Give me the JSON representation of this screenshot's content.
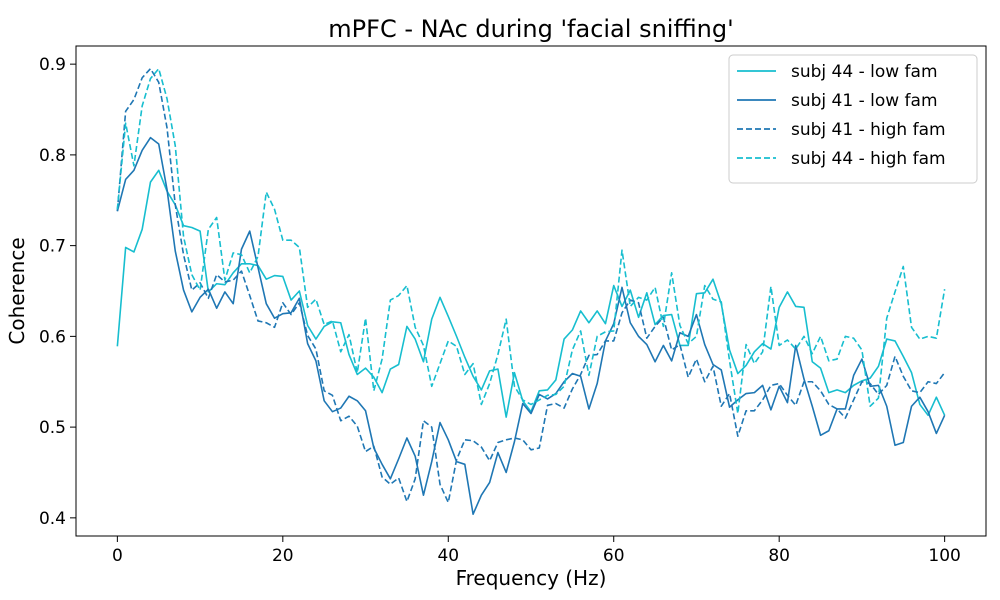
{
  "chart_data": {
    "type": "line",
    "title": "mPFC - NAc during 'facial sniffing'",
    "xlabel": "Frequency (Hz)",
    "ylabel": "Coherence",
    "xlim": [
      -5,
      105
    ],
    "ylim": [
      0.38,
      0.92
    ],
    "xticks": [
      0,
      20,
      40,
      60,
      80,
      100
    ],
    "yticks": [
      0.4,
      0.5,
      0.6,
      0.7,
      0.8,
      0.9
    ],
    "ytick_labels": [
      "0.4",
      "0.5",
      "0.6",
      "0.7",
      "0.8",
      "0.9"
    ],
    "legend_position": "top-right",
    "x": [
      0,
      1,
      2,
      3,
      4,
      5,
      6,
      7,
      8,
      9,
      10,
      11,
      12,
      13,
      14,
      15,
      16,
      17,
      18,
      19,
      20,
      21,
      22,
      23,
      24,
      25,
      26,
      27,
      28,
      29,
      30,
      31,
      32,
      33,
      34,
      35,
      36,
      37,
      38,
      39,
      40,
      41,
      42,
      43,
      44,
      45,
      46,
      47,
      48,
      49,
      50,
      51,
      52,
      53,
      54,
      55,
      56,
      57,
      58,
      59,
      60,
      61,
      62,
      63,
      64,
      65,
      66,
      67,
      68,
      69,
      70,
      71,
      72,
      73,
      74,
      75,
      76,
      77,
      78,
      79,
      80,
      81,
      82,
      83,
      84,
      85,
      86,
      87,
      88,
      89,
      90,
      91,
      92,
      93,
      94,
      95,
      96,
      97,
      98,
      99,
      100
    ],
    "series": [
      {
        "name": "subj 44 - low fam",
        "color": "#17becf",
        "dash": "solid",
        "values": [
          0.589,
          0.698,
          0.693,
          0.718,
          0.77,
          0.783,
          0.76,
          0.745,
          0.722,
          0.72,
          0.716,
          0.649,
          0.658,
          0.657,
          0.67,
          0.68,
          0.68,
          0.678,
          0.663,
          0.667,
          0.666,
          0.64,
          0.65,
          0.612,
          0.597,
          0.611,
          0.616,
          0.615,
          0.58,
          0.558,
          0.565,
          0.555,
          0.538,
          0.564,
          0.569,
          0.611,
          0.597,
          0.572,
          0.619,
          0.643,
          0.622,
          0.6,
          0.577,
          0.556,
          0.541,
          0.562,
          0.564,
          0.511,
          0.56,
          0.529,
          0.517,
          0.54,
          0.541,
          0.552,
          0.597,
          0.607,
          0.628,
          0.615,
          0.628,
          0.614,
          0.656,
          0.633,
          0.651,
          0.621,
          0.648,
          0.613,
          0.623,
          0.624,
          0.59,
          0.59,
          0.647,
          0.648,
          0.663,
          0.636,
          0.585,
          0.559,
          0.568,
          0.583,
          0.592,
          0.586,
          0.632,
          0.649,
          0.633,
          0.632,
          0.572,
          0.565,
          0.538,
          0.541,
          0.538,
          0.546,
          0.551,
          0.554,
          0.567,
          0.597,
          0.595,
          0.578,
          0.56,
          0.525,
          0.513,
          0.533,
          0.513
        ]
      },
      {
        "name": "subj 41 - low fam",
        "color": "#1f77b4",
        "dash": "solid",
        "values": [
          0.738,
          0.773,
          0.783,
          0.805,
          0.819,
          0.812,
          0.762,
          0.694,
          0.651,
          0.627,
          0.643,
          0.652,
          0.631,
          0.649,
          0.636,
          0.696,
          0.716,
          0.676,
          0.636,
          0.62,
          0.625,
          0.626,
          0.642,
          0.592,
          0.573,
          0.529,
          0.517,
          0.521,
          0.534,
          0.529,
          0.518,
          0.477,
          0.459,
          0.443,
          0.465,
          0.488,
          0.468,
          0.425,
          0.462,
          0.505,
          0.486,
          0.462,
          0.459,
          0.404,
          0.425,
          0.439,
          0.472,
          0.45,
          0.484,
          0.526,
          0.515,
          0.536,
          0.531,
          0.537,
          0.55,
          0.559,
          0.556,
          0.52,
          0.548,
          0.595,
          0.614,
          0.654,
          0.615,
          0.6,
          0.591,
          0.572,
          0.59,
          0.573,
          0.604,
          0.6,
          0.624,
          0.591,
          0.569,
          0.563,
          0.522,
          0.53,
          0.537,
          0.538,
          0.546,
          0.519,
          0.545,
          0.527,
          0.59,
          0.553,
          0.523,
          0.491,
          0.496,
          0.52,
          0.52,
          0.557,
          0.575,
          0.545,
          0.546,
          0.523,
          0.48,
          0.483,
          0.523,
          0.533,
          0.517,
          0.493,
          0.513
        ]
      },
      {
        "name": "subj 41 - high fam",
        "color": "#1f77b4",
        "dash": "dashed",
        "values": [
          0.738,
          0.848,
          0.861,
          0.885,
          0.895,
          0.88,
          0.83,
          0.745,
          0.69,
          0.651,
          0.659,
          0.642,
          0.668,
          0.66,
          0.662,
          0.672,
          0.645,
          0.617,
          0.615,
          0.61,
          0.637,
          0.624,
          0.637,
          0.601,
          0.586,
          0.54,
          0.535,
          0.507,
          0.512,
          0.501,
          0.473,
          0.479,
          0.445,
          0.437,
          0.444,
          0.418,
          0.443,
          0.507,
          0.5,
          0.437,
          0.417,
          0.464,
          0.486,
          0.485,
          0.478,
          0.463,
          0.483,
          0.486,
          0.488,
          0.486,
          0.475,
          0.477,
          0.524,
          0.526,
          0.521,
          0.542,
          0.558,
          0.579,
          0.58,
          0.595,
          0.595,
          0.626,
          0.64,
          0.637,
          0.598,
          0.611,
          0.621,
          0.585,
          0.591,
          0.555,
          0.575,
          0.55,
          0.567,
          0.523,
          0.537,
          0.49,
          0.518,
          0.518,
          0.53,
          0.546,
          0.548,
          0.535,
          0.524,
          0.55,
          0.55,
          0.54,
          0.525,
          0.52,
          0.51,
          0.53,
          0.55,
          0.548,
          0.536,
          0.546,
          0.578,
          0.556,
          0.54,
          0.538,
          0.55,
          0.548,
          0.56
        ]
      },
      {
        "name": "subj 44 - high fam",
        "color": "#17becf",
        "dash": "dashed",
        "values": [
          0.74,
          0.835,
          0.788,
          0.854,
          0.884,
          0.895,
          0.862,
          0.81,
          0.71,
          0.668,
          0.651,
          0.718,
          0.731,
          0.662,
          0.692,
          0.69,
          0.67,
          0.688,
          0.759,
          0.74,
          0.706,
          0.706,
          0.698,
          0.632,
          0.641,
          0.613,
          0.617,
          0.583,
          0.602,
          0.56,
          0.62,
          0.54,
          0.575,
          0.64,
          0.645,
          0.656,
          0.61,
          0.59,
          0.545,
          0.57,
          0.595,
          0.589,
          0.558,
          0.57,
          0.525,
          0.548,
          0.58,
          0.619,
          0.545,
          0.53,
          0.525,
          0.53,
          0.535,
          0.536,
          0.545,
          0.585,
          0.606,
          0.557,
          0.6,
          0.605,
          0.606,
          0.695,
          0.633,
          0.643,
          0.64,
          0.654,
          0.611,
          0.67,
          0.612,
          0.592,
          0.6,
          0.656,
          0.641,
          0.638,
          0.573,
          0.515,
          0.591,
          0.57,
          0.583,
          0.655,
          0.59,
          0.596,
          0.586,
          0.6,
          0.581,
          0.6,
          0.573,
          0.575,
          0.6,
          0.598,
          0.585,
          0.523,
          0.532,
          0.62,
          0.649,
          0.677,
          0.61,
          0.597,
          0.6,
          0.598,
          0.652
        ]
      }
    ]
  }
}
